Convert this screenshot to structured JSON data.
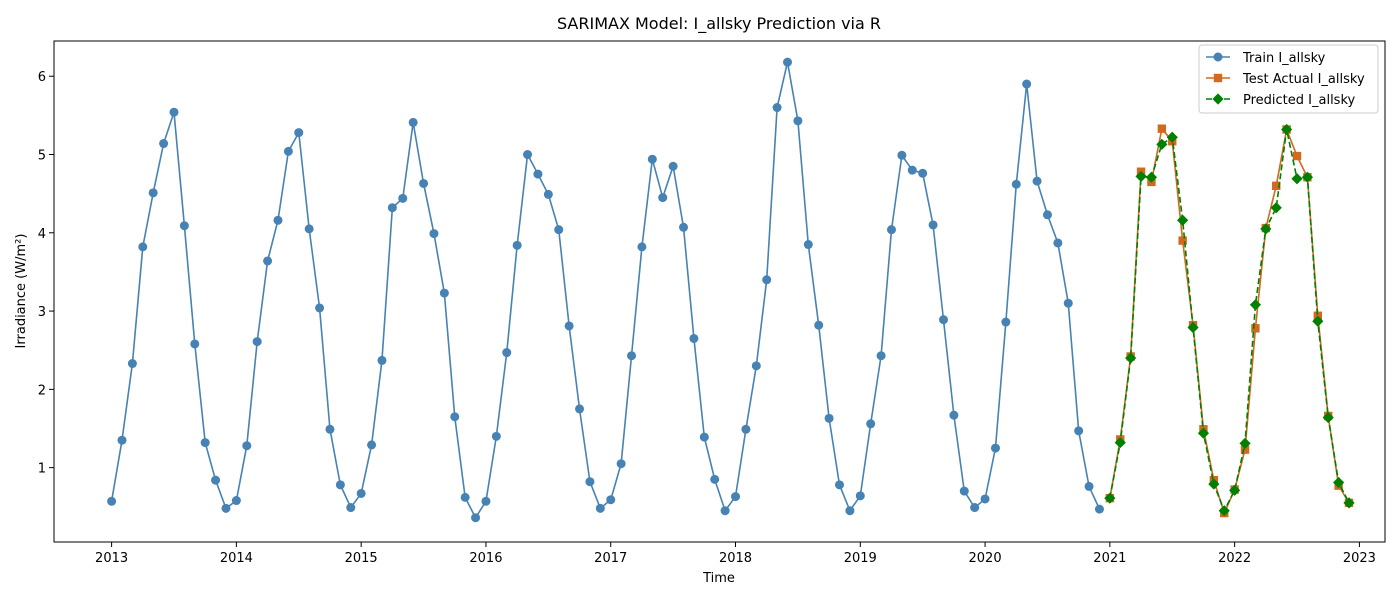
{
  "chart_data": {
    "type": "line",
    "title": "SARIMAX Model: I_allsky Prediction via R",
    "xlabel": "Time",
    "ylabel": "Irradiance (W/m²)",
    "xlim": [
      "2012-07-15",
      "2023-03-15"
    ],
    "ylim": [
      0.05,
      6.45
    ],
    "x_ticks": [
      "2013",
      "2014",
      "2015",
      "2016",
      "2017",
      "2018",
      "2019",
      "2020",
      "2021",
      "2022",
      "2023"
    ],
    "y_ticks": [
      1,
      2,
      3,
      4,
      5,
      6
    ],
    "grid": false,
    "legend_position": "top-right",
    "series": [
      {
        "name": "Train I_allsky",
        "color": "#4682B4",
        "marker": "circle",
        "line_style": "solid",
        "start": "2013-01",
        "values": [
          0.57,
          1.35,
          2.33,
          3.82,
          4.51,
          5.14,
          5.54,
          4.09,
          2.58,
          1.32,
          0.84,
          0.48,
          0.58,
          1.28,
          2.61,
          3.64,
          4.16,
          5.04,
          5.28,
          4.05,
          3.04,
          1.49,
          0.78,
          0.49,
          0.67,
          1.29,
          2.37,
          4.32,
          4.44,
          5.41,
          4.63,
          3.99,
          3.23,
          1.65,
          0.62,
          0.36,
          0.57,
          1.4,
          2.47,
          3.84,
          5.0,
          4.75,
          4.49,
          4.04,
          2.81,
          1.75,
          0.82,
          0.48,
          0.59,
          1.05,
          2.43,
          3.82,
          4.94,
          4.45,
          4.85,
          4.07,
          2.65,
          1.39,
          0.85,
          0.45,
          0.63,
          1.49,
          2.3,
          3.4,
          5.6,
          6.18,
          5.43,
          3.85,
          2.82,
          1.63,
          0.78,
          0.45,
          0.64,
          1.56,
          2.43,
          4.04,
          4.99,
          4.8,
          4.76,
          4.1,
          2.89,
          1.67,
          0.7,
          0.49,
          0.6,
          1.25,
          2.86,
          4.62,
          5.9,
          4.66,
          4.23,
          3.87,
          3.1,
          1.47,
          0.76,
          0.47
        ]
      },
      {
        "name": "Test Actual I_allsky",
        "color": "#D2691E",
        "marker": "square",
        "line_style": "solid",
        "start": "2021-01",
        "values": [
          0.61,
          1.36,
          2.42,
          4.78,
          4.65,
          5.33,
          5.17,
          3.9,
          2.82,
          1.49,
          0.84,
          0.42,
          0.72,
          1.23,
          2.78,
          4.06,
          4.6,
          5.32,
          4.98,
          4.71,
          2.94,
          1.66,
          0.77,
          0.55
        ]
      },
      {
        "name": "Predicted I_allsky",
        "color": "#008000",
        "marker": "diamond",
        "line_style": "dashed",
        "start": "2021-01",
        "values": [
          0.61,
          1.32,
          2.4,
          4.72,
          4.71,
          5.13,
          5.22,
          4.16,
          2.79,
          1.44,
          0.79,
          0.45,
          0.71,
          1.31,
          3.08,
          4.05,
          4.32,
          5.32,
          4.69,
          4.71,
          2.87,
          1.64,
          0.81,
          0.55
        ]
      }
    ]
  }
}
